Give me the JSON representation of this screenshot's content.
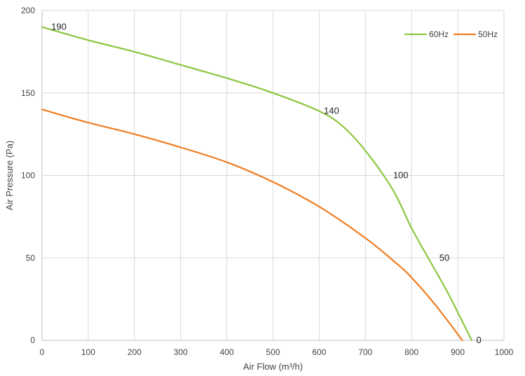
{
  "chart_data": {
    "type": "line",
    "title": "",
    "xlabel": "Air Flow  (m³/h)",
    "ylabel": "Air Pressure  (Pa)",
    "xlim": [
      0,
      1000
    ],
    "ylim": [
      0,
      200
    ],
    "x_ticks": [
      0,
      100,
      200,
      300,
      400,
      500,
      600,
      700,
      800,
      900,
      1000
    ],
    "y_ticks": [
      0,
      50,
      100,
      150,
      200
    ],
    "grid": true,
    "legend_position": "top-right",
    "series": [
      {
        "name": "60Hz",
        "color": "#8cc63f",
        "points": [
          [
            0,
            190
          ],
          [
            100,
            182
          ],
          [
            200,
            175
          ],
          [
            300,
            167
          ],
          [
            400,
            159
          ],
          [
            500,
            150
          ],
          [
            600,
            139
          ],
          [
            650,
            130
          ],
          [
            700,
            115
          ],
          [
            760,
            91
          ],
          [
            800,
            68
          ],
          [
            840,
            48
          ],
          [
            880,
            28
          ],
          [
            930,
            0
          ]
        ]
      },
      {
        "name": "50Hz",
        "color": "#ef7d22",
        "points": [
          [
            0,
            140
          ],
          [
            100,
            132
          ],
          [
            200,
            125
          ],
          [
            300,
            117
          ],
          [
            400,
            108
          ],
          [
            500,
            96
          ],
          [
            600,
            81
          ],
          [
            700,
            62
          ],
          [
            770,
            46
          ],
          [
            800,
            38
          ],
          [
            850,
            22
          ],
          [
            910,
            0
          ]
        ]
      }
    ],
    "annotations": [
      {
        "text": "190",
        "x": 20,
        "y": 190
      },
      {
        "text": "140",
        "x": 610,
        "y": 139
      },
      {
        "text": "100",
        "x": 760,
        "y": 100
      },
      {
        "text": "50",
        "x": 860,
        "y": 50
      },
      {
        "text": "0",
        "x": 940,
        "y": 0
      }
    ]
  }
}
